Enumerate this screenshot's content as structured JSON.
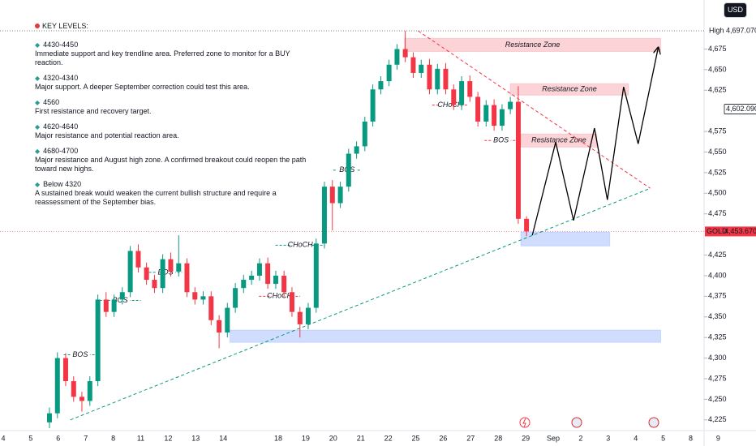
{
  "header": {
    "currency": "USD"
  },
  "notes": {
    "title": "KEY LEVELS:",
    "items": [
      {
        "level": "4430-4450",
        "text": "Immediate support and key trendline area. Preferred zone to monitor for a BUY reaction."
      },
      {
        "level": "4320-4340",
        "text": "Major support. A deeper September correction could test this area."
      },
      {
        "level": "4560",
        "text": "First resistance and recovery target."
      },
      {
        "level": "4620-4640",
        "text": "Major resistance and potential reaction area."
      },
      {
        "level": "4680-4700",
        "text": "Major resistance and August high zone. A confirmed breakout could reopen the path toward new highs."
      },
      {
        "level": "Below 4320",
        "text": "A sustained break would weaken the current bullish structure and require a reassessment of the September bias."
      }
    ]
  },
  "chart_data": {
    "type": "candlestick",
    "categories": [
      "4",
      "5",
      "6",
      "7",
      "8",
      "11",
      "12",
      "13",
      "14",
      null,
      "18",
      "19",
      "20",
      "21",
      "22",
      "25",
      "26",
      "27",
      "28",
      "29",
      "Sep",
      "2",
      "3",
      "4",
      "5",
      "8",
      "9"
    ],
    "x": [
      1.68,
      1.97,
      2.27,
      2.56,
      2.86,
      3.15,
      3.44,
      3.74,
      4.03,
      4.33,
      4.62,
      4.91,
      5.21,
      5.5,
      5.8,
      6.09,
      6.38,
      6.68,
      6.97,
      7.27,
      7.56,
      7.85,
      8.15,
      8.44,
      8.74,
      9.03,
      9.32,
      9.62,
      9.91,
      10.21,
      10.5,
      10.79,
      11.09,
      11.38,
      11.68,
      11.97,
      12.26,
      12.56,
      12.85,
      13.15,
      13.44,
      13.73,
      14.03,
      14.32,
      14.62,
      14.91,
      15.2,
      15.5,
      15.79,
      16.09,
      16.38,
      16.67,
      16.97,
      17.26,
      17.56,
      17.85,
      18.14,
      18.44,
      18.73,
      19.03
    ],
    "open": [
      4222,
      4233,
      4300,
      4272,
      4253,
      4248,
      4272,
      4371,
      4356,
      4371,
      4380,
      4430,
      4410,
      4395,
      4385,
      4420,
      4405,
      4415,
      4380,
      4371,
      4375,
      4346,
      4331,
      4361,
      4385,
      4395,
      4400,
      4415,
      4390,
      4400,
      4380,
      4356,
      4341,
      4361,
      4439,
      4508,
      4488,
      4508,
      4548,
      4557,
      4587,
      4626,
      4636,
      4656,
      4675,
      4665,
      4646,
      4656,
      4626,
      4651,
      4626,
      4607,
      4636,
      4617,
      4587,
      4607,
      4582,
      4602,
      4611,
      4469
    ],
    "high": [
      4240,
      4307,
      4306,
      4278,
      4259,
      4278,
      4377,
      4380,
      4377,
      4386,
      4436,
      4438,
      4416,
      4401,
      4426,
      4428,
      4449,
      4421,
      4386,
      4381,
      4381,
      4352,
      4367,
      4391,
      4401,
      4406,
      4421,
      4422,
      4406,
      4406,
      4386,
      4362,
      4367,
      4445,
      4514,
      4516,
      4514,
      4554,
      4563,
      4593,
      4632,
      4642,
      4662,
      4681,
      4697,
      4671,
      4662,
      4663,
      4657,
      4658,
      4632,
      4642,
      4643,
      4623,
      4613,
      4614,
      4608,
      4617,
      4630,
      4472
    ],
    "low": [
      4215,
      4227,
      4266,
      4247,
      4235,
      4242,
      4266,
      4350,
      4350,
      4365,
      4374,
      4404,
      4389,
      4379,
      4379,
      4399,
      4399,
      4374,
      4365,
      4365,
      4340,
      4312,
      4325,
      4355,
      4379,
      4389,
      4394,
      4384,
      4384,
      4374,
      4350,
      4325,
      4335,
      4355,
      4433,
      4455,
      4482,
      4502,
      4542,
      4551,
      4581,
      4620,
      4630,
      4650,
      4659,
      4640,
      4640,
      4620,
      4620,
      4620,
      4601,
      4601,
      4611,
      4581,
      4581,
      4576,
      4576,
      4596,
      4463,
      4448
    ],
    "close": [
      4233,
      4300,
      4272,
      4253,
      4248,
      4272,
      4371,
      4356,
      4371,
      4380,
      4430,
      4410,
      4395,
      4385,
      4420,
      4405,
      4415,
      4380,
      4371,
      4375,
      4346,
      4331,
      4361,
      4385,
      4395,
      4400,
      4415,
      4390,
      4400,
      4380,
      4356,
      4341,
      4361,
      4439,
      4508,
      4488,
      4508,
      4548,
      4557,
      4587,
      4626,
      4636,
      4656,
      4675,
      4665,
      4646,
      4656,
      4626,
      4651,
      4626,
      4607,
      4636,
      4617,
      4587,
      4607,
      4582,
      4602,
      4611,
      4469,
      4453.67
    ],
    "up_color": "#089981",
    "down_color": "#f23645",
    "ylim": [
      4213,
      4734.5
    ],
    "yticks": [
      {
        "value": 4225,
        "label": "4,225"
      },
      {
        "value": 4250,
        "label": "4,250"
      },
      {
        "value": 4275,
        "label": "4,275"
      },
      {
        "value": 4300,
        "label": "4,300"
      },
      {
        "value": 4325,
        "label": "4,325"
      },
      {
        "value": 4350,
        "label": "4,350"
      },
      {
        "value": 4375,
        "label": "4,375"
      },
      {
        "value": 4400,
        "label": "4,400"
      },
      {
        "value": 4425,
        "label": "4,425"
      },
      {
        "value": 4475,
        "label": "4,475"
      },
      {
        "value": 4500,
        "label": "4,500"
      },
      {
        "value": 4525,
        "label": "4,525"
      },
      {
        "value": 4550,
        "label": "4,550"
      },
      {
        "value": 4575,
        "label": "4,575"
      },
      {
        "value": 4625,
        "label": "4,625"
      },
      {
        "value": 4650,
        "label": "4,650"
      },
      {
        "value": 4675,
        "label": "4,675"
      }
    ],
    "price_labels": [
      {
        "name": "High",
        "value": 4697.07,
        "label": "4,697.070",
        "color": "#131722"
      },
      {
        "value": 4602.09,
        "label": "4,602.090",
        "color": "#131722"
      },
      {
        "name": "GOLD",
        "value": 4453.67,
        "label": "4,453.670",
        "color": "#f23645"
      }
    ],
    "zones": [
      {
        "label": "Resistance Zone",
        "x": [
          14.59,
          23.91
        ],
        "y": [
          4672,
          4688
        ],
        "color": "#f23645"
      },
      {
        "label": "Resistance Zone",
        "x": [
          18.44,
          22.74
        ],
        "y": [
          4619,
          4633
        ],
        "color": "#f23645"
      },
      {
        "label": "Resistance Zone",
        "x": [
          18.82,
          21.59
        ],
        "y": [
          4556,
          4572
        ],
        "color": "#f23645"
      },
      {
        "x": [
          18.82,
          22.06
        ],
        "y": [
          4436,
          4453
        ],
        "color": "#2962ff"
      },
      {
        "x": [
          8.24,
          23.91
        ],
        "y": [
          4319,
          4334
        ],
        "color": "#2962ff"
      }
    ],
    "trendlines": [
      {
        "x": [
          2.44,
          23.53
        ],
        "y": [
          4225,
          4506
        ],
        "color": "#089981"
      },
      {
        "x": [
          15.09,
          23.53
        ],
        "y": [
          4697,
          4506
        ],
        "color": "#f23645"
      }
    ],
    "projection": {
      "x": [
        19.24,
        20.09,
        20.74,
        21.5,
        21.97,
        22.56,
        23.09,
        23.82
      ],
      "y": [
        4449,
        4562,
        4467,
        4579,
        4492,
        4629,
        4560,
        4677
      ],
      "color": "#000000"
    },
    "annotations": [
      {
        "text": "BOS",
        "x": [
          2.2,
          3.4
        ],
        "y": 4304,
        "color": "#089981"
      },
      {
        "text": "BOS",
        "x": [
          3.5,
          5.0
        ],
        "y": 4370,
        "color": "#089981"
      },
      {
        "text": "BOS",
        "x": [
          5.3,
          6.5
        ],
        "y": 4404,
        "color": "#089981"
      },
      {
        "text": "CHoCH",
        "x": [
          9.9,
          11.7
        ],
        "y": 4437,
        "color": "#089981"
      },
      {
        "text": "CHoCH",
        "x": [
          9.3,
          10.8
        ],
        "y": 4375,
        "color": "#f23645"
      },
      {
        "text": "BOS",
        "x": [
          12.0,
          13.0
        ],
        "y": 4528,
        "color": "#089981"
      },
      {
        "text": "CHoCH",
        "x": [
          15.6,
          16.9
        ],
        "y": 4607,
        "color": "#f23645"
      },
      {
        "text": "BOS",
        "x": [
          17.5,
          18.7
        ],
        "y": 4564,
        "color": "#f23645"
      }
    ]
  }
}
